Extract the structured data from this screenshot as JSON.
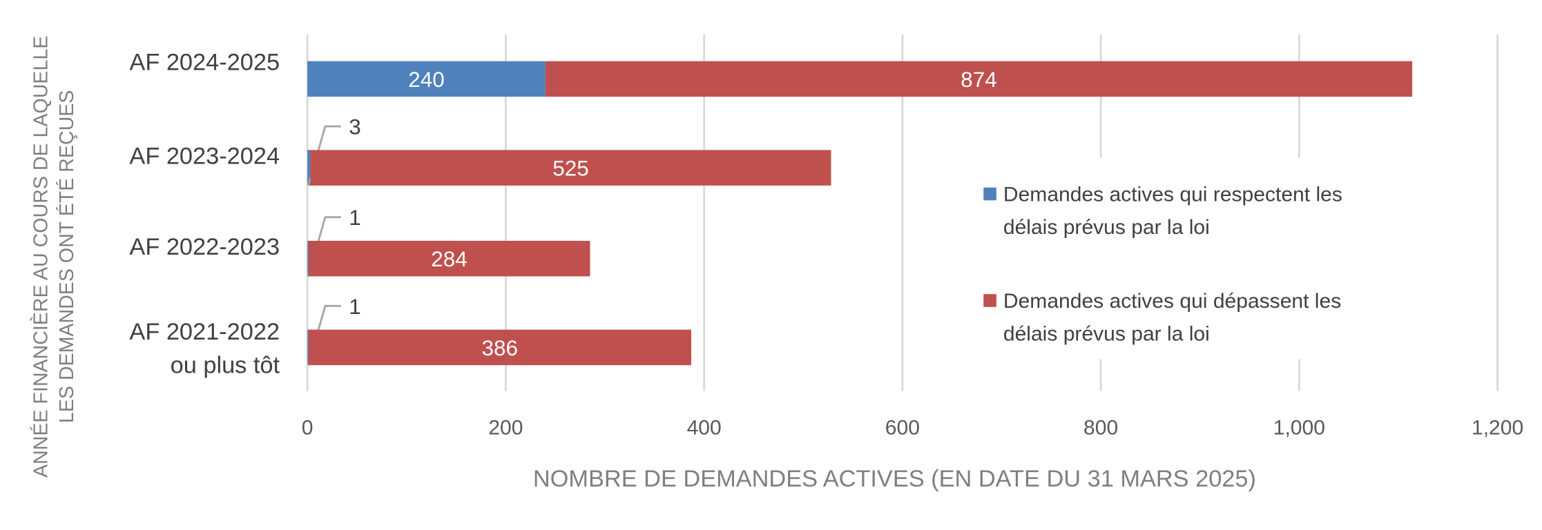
{
  "chart_data": {
    "type": "bar",
    "orientation": "horizontal",
    "stacked": true,
    "categories": [
      "AF 2024-2025",
      "AF 2023-2024",
      "AF 2022-2023",
      "AF 2021-2022 ou plus tôt"
    ],
    "category_lines": [
      [
        "AF 2024-2025"
      ],
      [
        "AF 2023-2024"
      ],
      [
        "AF 2022-2023"
      ],
      [
        "AF 2021-2022",
        "ou plus tôt"
      ]
    ],
    "series": [
      {
        "name": "Demandes actives qui respectent les délais prévus par la loi",
        "legend_lines": [
          "Demandes actives qui respectent les",
          "délais prévus par la loi"
        ],
        "color": "#4F81BD",
        "values": [
          240,
          3,
          1,
          1
        ],
        "labels": [
          "240",
          "3",
          "1",
          "1"
        ]
      },
      {
        "name": "Demandes actives qui dépassent les délais prévus par la loi",
        "legend_lines": [
          "Demandes actives qui dépassent les",
          "délais prévus par la loi"
        ],
        "color": "#C0504D",
        "values": [
          874,
          525,
          284,
          386
        ],
        "labels": [
          "874",
          "525",
          "284",
          "386"
        ]
      }
    ],
    "xlabel": "NOMBRE DE DEMANDES ACTIVES (EN DATE DU 31 MARS 2025)",
    "ylabel_lines": [
      "ANNÉE FINANCIÈRE AU COURS DE LAQUELLE",
      "LES DEMANDES ONT ÉTÉ REÇUES"
    ],
    "xlim": [
      0,
      1200
    ],
    "xticks": [
      "0",
      "200",
      "400",
      "600",
      "800",
      "1,000",
      "1,200"
    ],
    "xtick_values": [
      0,
      200,
      400,
      600,
      800,
      1000,
      1200
    ],
    "grid": true,
    "legend_position": "right",
    "colors": {
      "text": "#595959",
      "grid": "#D9D9D9"
    }
  }
}
